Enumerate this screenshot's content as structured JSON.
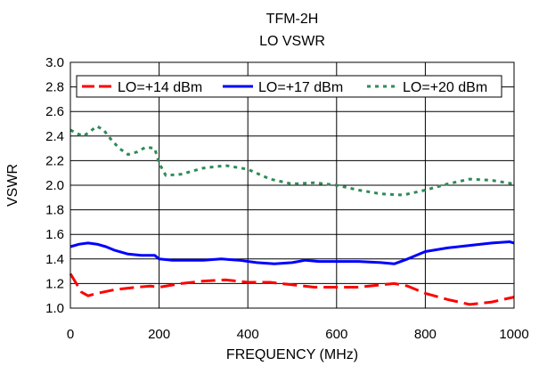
{
  "chart_data": {
    "type": "line",
    "title": "TFM-2H",
    "subtitle": "LO VSWR",
    "xlabel": "FREQUENCY (MHz)",
    "ylabel": "VSWR",
    "xlim": [
      0,
      1000
    ],
    "ylim": [
      1.0,
      3.0
    ],
    "x_ticks": [
      "0",
      "200",
      "400",
      "600",
      "800",
      "1000"
    ],
    "y_ticks": [
      "1.0",
      "1.2",
      "1.4",
      "1.6",
      "1.8",
      "2.0",
      "2.2",
      "2.4",
      "2.6",
      "2.8",
      "3.0"
    ],
    "grid": true,
    "legend_position": "top",
    "series": [
      {
        "name": "LO=+14 dBm",
        "color": "#ff0000",
        "dash": "long-dash",
        "x": [
          0,
          10,
          25,
          40,
          60,
          100,
          150,
          180,
          200,
          250,
          300,
          350,
          400,
          450,
          500,
          550,
          600,
          650,
          700,
          730,
          760,
          800,
          850,
          900,
          950,
          1000
        ],
        "y": [
          1.28,
          1.22,
          1.13,
          1.1,
          1.12,
          1.15,
          1.17,
          1.18,
          1.17,
          1.2,
          1.22,
          1.23,
          1.21,
          1.21,
          1.19,
          1.17,
          1.17,
          1.17,
          1.19,
          1.2,
          1.18,
          1.12,
          1.07,
          1.03,
          1.05,
          1.09
        ]
      },
      {
        "name": "LO=+17 dBm",
        "color": "#0000ff",
        "dash": "solid",
        "x": [
          0,
          20,
          40,
          60,
          80,
          100,
          130,
          160,
          190,
          200,
          230,
          300,
          340,
          380,
          420,
          460,
          500,
          530,
          560,
          600,
          650,
          700,
          730,
          760,
          800,
          850,
          900,
          950,
          990,
          1000
        ],
        "y": [
          1.5,
          1.52,
          1.53,
          1.52,
          1.5,
          1.47,
          1.44,
          1.43,
          1.43,
          1.4,
          1.39,
          1.39,
          1.4,
          1.39,
          1.37,
          1.36,
          1.37,
          1.39,
          1.38,
          1.38,
          1.38,
          1.37,
          1.36,
          1.4,
          1.46,
          1.49,
          1.51,
          1.53,
          1.54,
          1.53
        ]
      },
      {
        "name": "LO=+20 dBm",
        "color": "#2e8b57",
        "dash": "short-dash",
        "x": [
          0,
          15,
          30,
          45,
          60,
          75,
          90,
          110,
          130,
          150,
          170,
          190,
          200,
          215,
          250,
          300,
          350,
          400,
          450,
          500,
          550,
          600,
          650,
          700,
          750,
          800,
          850,
          900,
          950,
          1000
        ],
        "y": [
          2.45,
          2.42,
          2.4,
          2.44,
          2.48,
          2.45,
          2.38,
          2.3,
          2.25,
          2.27,
          2.31,
          2.3,
          2.18,
          2.08,
          2.09,
          2.14,
          2.16,
          2.13,
          2.05,
          2.01,
          2.02,
          2.0,
          1.96,
          1.93,
          1.92,
          1.96,
          2.01,
          2.05,
          2.04,
          2.01
        ]
      }
    ]
  }
}
